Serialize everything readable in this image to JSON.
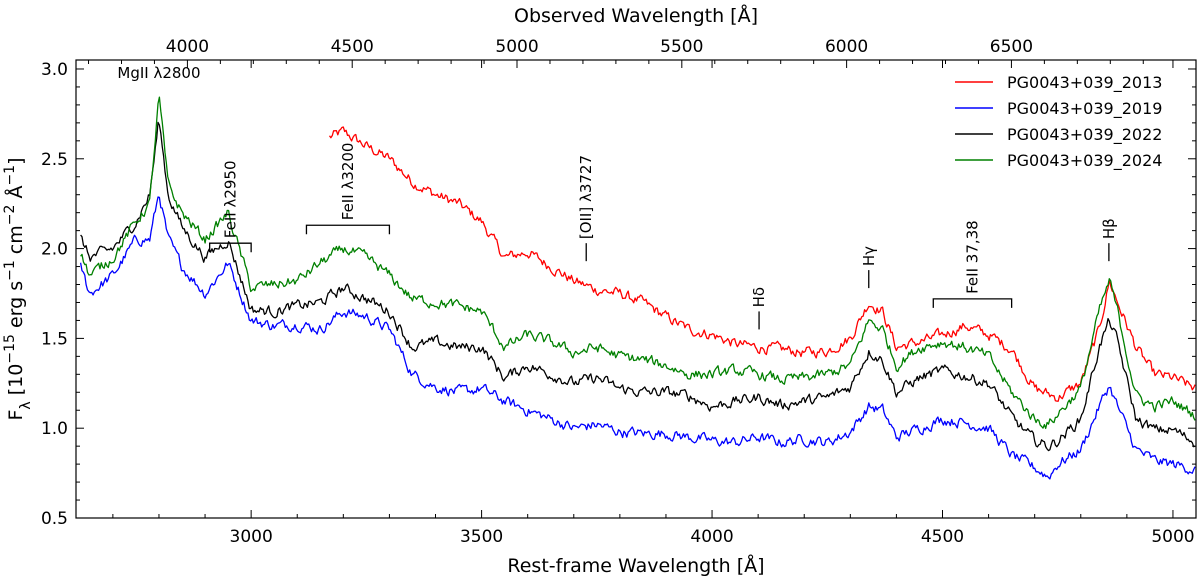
{
  "chart_data": {
    "type": "line",
    "title": "",
    "xlabel": "Rest-frame Wavelength [Å]",
    "ylabel": "F_λ [10^-15 erg s^-1 cm^-2 Å^-1]",
    "top_xlabel": "Observed Wavelength [Å]",
    "xlim": [
      2620,
      5050
    ],
    "ylim": [
      0.5,
      3.05
    ],
    "top_xlim": [
      3662,
      7060
    ],
    "x_ticks": [
      3000,
      3500,
      4000,
      4500,
      5000
    ],
    "x_tick_labels": [
      "3000",
      "3500",
      "4000",
      "4500",
      "5000"
    ],
    "y_ticks": [
      0.5,
      1.0,
      1.5,
      2.0,
      2.5,
      3.0
    ],
    "y_tick_labels": [
      "0.5",
      "1.0",
      "1.5",
      "2.0",
      "2.5",
      "3.0"
    ],
    "top_ticks": [
      4000,
      4500,
      5000,
      5500,
      6000,
      6500
    ],
    "top_tick_labels": [
      "4000",
      "4500",
      "5000",
      "5500",
      "6000",
      "6500"
    ],
    "legend_position": "top-right",
    "series": [
      {
        "name": "PG0043+039_2013",
        "color": "#ff0000",
        "x": [
          3170,
          3200,
          3250,
          3300,
          3350,
          3400,
          3450,
          3500,
          3550,
          3600,
          3650,
          3700,
          3750,
          3800,
          3850,
          3900,
          3950,
          4000,
          4050,
          4100,
          4150,
          4200,
          4250,
          4300,
          4340,
          4370,
          4400,
          4450,
          4500,
          4550,
          4600,
          4650,
          4700,
          4750,
          4800,
          4840,
          4862,
          4880,
          4920,
          4960,
          5000,
          5050
        ],
        "y": [
          2.62,
          2.65,
          2.57,
          2.5,
          2.37,
          2.3,
          2.25,
          2.15,
          1.95,
          1.98,
          1.9,
          1.82,
          1.77,
          1.75,
          1.7,
          1.62,
          1.55,
          1.52,
          1.47,
          1.45,
          1.44,
          1.42,
          1.43,
          1.5,
          1.7,
          1.65,
          1.45,
          1.48,
          1.52,
          1.57,
          1.52,
          1.44,
          1.22,
          1.17,
          1.25,
          1.55,
          1.82,
          1.7,
          1.45,
          1.3,
          1.28,
          1.22
        ]
      },
      {
        "name": "PG0043+039_2019",
        "color": "#0000ff",
        "x": [
          2630,
          2650,
          2700,
          2750,
          2780,
          2800,
          2820,
          2850,
          2900,
          2950,
          3000,
          3050,
          3100,
          3150,
          3200,
          3250,
          3300,
          3350,
          3400,
          3450,
          3500,
          3550,
          3600,
          3650,
          3700,
          3750,
          3800,
          3850,
          3900,
          3950,
          4000,
          4050,
          4100,
          4150,
          4200,
          4250,
          4300,
          4340,
          4370,
          4400,
          4450,
          4500,
          4550,
          4600,
          4650,
          4700,
          4730,
          4750,
          4800,
          4840,
          4862,
          4880,
          4920,
          4960,
          5000,
          5050
        ],
        "y": [
          1.9,
          1.75,
          1.85,
          2.05,
          2.05,
          2.31,
          2.05,
          1.9,
          1.75,
          1.92,
          1.6,
          1.57,
          1.58,
          1.55,
          1.65,
          1.62,
          1.55,
          1.3,
          1.23,
          1.2,
          1.22,
          1.15,
          1.1,
          1.05,
          1.0,
          1.02,
          0.98,
          0.97,
          0.97,
          0.95,
          0.93,
          0.92,
          0.95,
          0.92,
          0.94,
          0.92,
          0.98,
          1.12,
          1.1,
          0.95,
          1.0,
          1.05,
          1.03,
          1.0,
          0.85,
          0.78,
          0.73,
          0.8,
          0.88,
          1.12,
          1.24,
          1.12,
          0.88,
          0.82,
          0.8,
          0.77
        ]
      },
      {
        "name": "PG0043+039_2022",
        "color": "#000000",
        "x": [
          2630,
          2650,
          2700,
          2750,
          2780,
          2800,
          2820,
          2850,
          2900,
          2950,
          3000,
          3050,
          3100,
          3150,
          3200,
          3250,
          3300,
          3350,
          3400,
          3450,
          3500,
          3550,
          3600,
          3650,
          3700,
          3750,
          3800,
          3850,
          3900,
          3950,
          4000,
          4050,
          4100,
          4150,
          4200,
          4250,
          4300,
          4340,
          4370,
          4400,
          4450,
          4500,
          4550,
          4600,
          4650,
          4700,
          4730,
          4750,
          4800,
          4840,
          4862,
          4880,
          4920,
          4960,
          5000,
          5050
        ],
        "y": [
          2.06,
          1.95,
          2.0,
          2.15,
          2.3,
          2.72,
          2.3,
          2.12,
          1.95,
          2.05,
          1.66,
          1.65,
          1.68,
          1.7,
          1.78,
          1.72,
          1.65,
          1.45,
          1.48,
          1.45,
          1.45,
          1.28,
          1.35,
          1.3,
          1.25,
          1.28,
          1.22,
          1.2,
          1.2,
          1.18,
          1.12,
          1.15,
          1.17,
          1.13,
          1.15,
          1.17,
          1.23,
          1.43,
          1.38,
          1.2,
          1.28,
          1.32,
          1.29,
          1.25,
          1.06,
          0.93,
          0.9,
          0.93,
          1.05,
          1.45,
          1.6,
          1.48,
          1.05,
          0.99,
          0.99,
          0.92
        ]
      },
      {
        "name": "PG0043+039_2024",
        "color": "#008000",
        "x": [
          2630,
          2650,
          2700,
          2750,
          2780,
          2800,
          2820,
          2850,
          2900,
          2950,
          3000,
          3050,
          3100,
          3150,
          3200,
          3250,
          3300,
          3350,
          3400,
          3450,
          3500,
          3550,
          3600,
          3650,
          3700,
          3750,
          3800,
          3850,
          3900,
          3950,
          4000,
          4050,
          4100,
          4150,
          4200,
          4250,
          4300,
          4340,
          4370,
          4400,
          4450,
          4500,
          4550,
          4600,
          4650,
          4700,
          4730,
          4750,
          4800,
          4840,
          4862,
          4880,
          4920,
          4960,
          5000,
          5050
        ],
        "y": [
          1.98,
          1.85,
          1.95,
          2.15,
          2.25,
          2.85,
          2.35,
          2.2,
          2.05,
          2.2,
          1.78,
          1.8,
          1.82,
          1.92,
          2.0,
          1.95,
          1.85,
          1.72,
          1.7,
          1.68,
          1.65,
          1.45,
          1.52,
          1.48,
          1.42,
          1.45,
          1.4,
          1.38,
          1.35,
          1.3,
          1.3,
          1.32,
          1.3,
          1.27,
          1.28,
          1.3,
          1.35,
          1.6,
          1.55,
          1.35,
          1.45,
          1.48,
          1.45,
          1.4,
          1.2,
          1.05,
          1.02,
          1.08,
          1.22,
          1.65,
          1.82,
          1.65,
          1.18,
          1.12,
          1.15,
          1.07
        ]
      }
    ],
    "annotations": [
      {
        "text": "MgII λ2800",
        "type": "label",
        "x": 2800,
        "y": 2.95
      },
      {
        "text": "FeII λ2950",
        "type": "bracket",
        "x_start": 2910,
        "x_end": 3000,
        "y": 2.03
      },
      {
        "text": "FeII λ3200",
        "type": "bracket",
        "x_start": 3120,
        "x_end": 3300,
        "y": 2.13
      },
      {
        "text": "[OII] λ3727",
        "type": "tick",
        "x": 3727,
        "y": 1.93
      },
      {
        "text": "Hδ",
        "type": "tick",
        "x": 4102,
        "y": 1.55
      },
      {
        "text": "Hγ",
        "type": "tick",
        "x": 4340,
        "y": 1.78
      },
      {
        "text": "FeII 37,38",
        "type": "bracket",
        "x_start": 4480,
        "x_end": 4650,
        "y": 1.72
      },
      {
        "text": "Hβ",
        "type": "tick",
        "x": 4861,
        "y": 1.93
      }
    ]
  }
}
